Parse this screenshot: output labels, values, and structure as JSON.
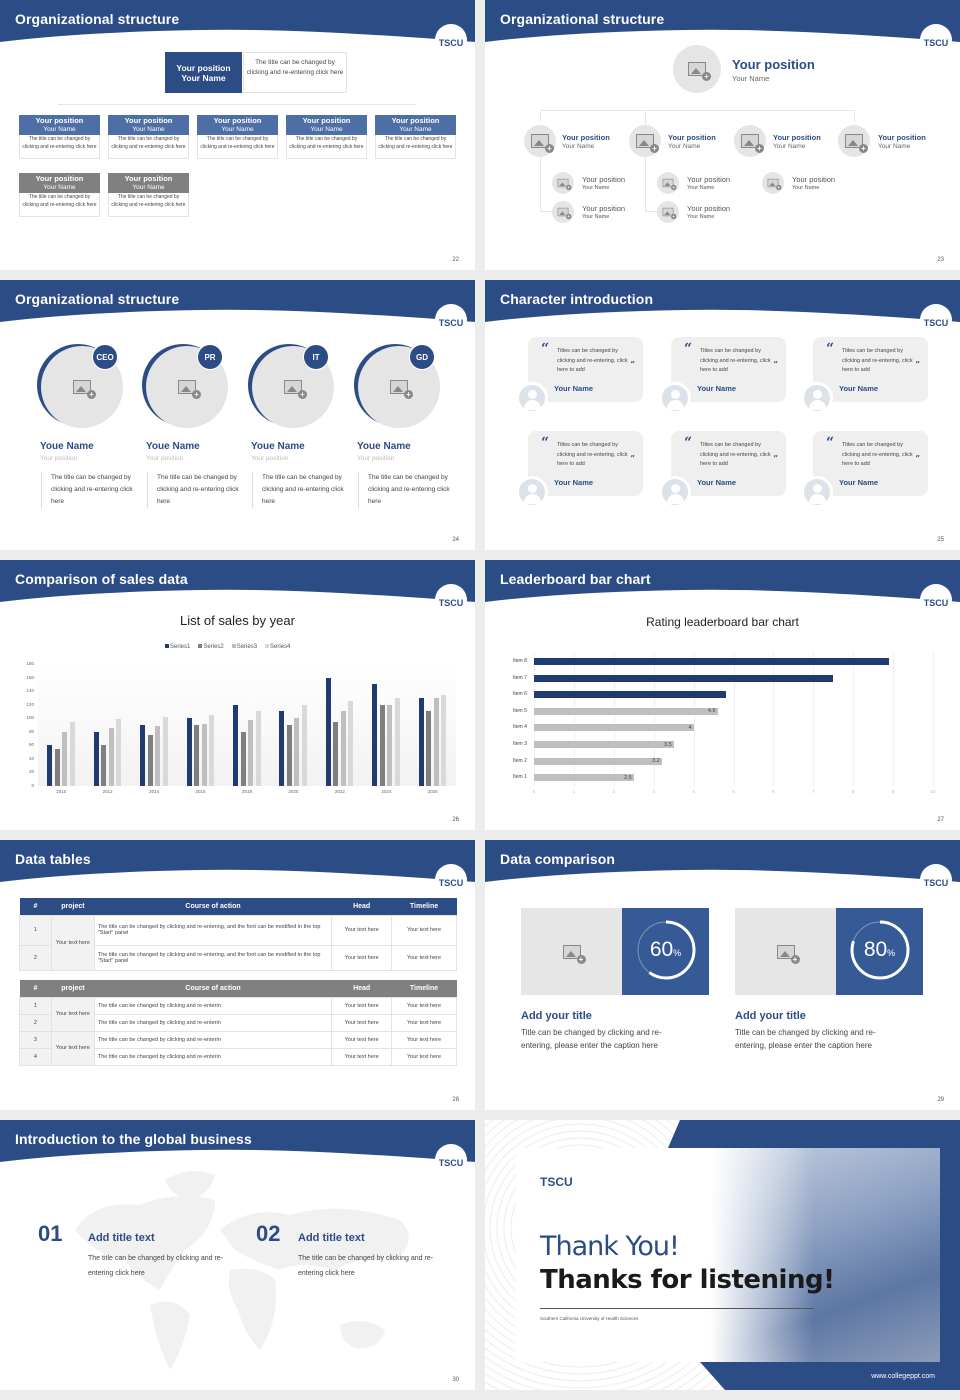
{
  "colors": {
    "brand_navy": "#2c4c85",
    "gray_header": "#808080",
    "light_gray": "#e5e5e5"
  },
  "logo_text": "TSCU",
  "slides": {
    "s22": {
      "title": "Organizational structure",
      "page": "22",
      "top": {
        "position": "Your position",
        "name": "Your Name",
        "desc": "The title can be changed by clicking and re-entering click here"
      },
      "row1": [
        {
          "position": "Your position",
          "name": "Your Name",
          "desc": "The title can be changed by clicking and re-entering click here"
        },
        {
          "position": "Your position",
          "name": "Your Name",
          "desc": "The title can be changed by clicking and re-entering click here"
        },
        {
          "position": "Your position",
          "name": "Your Name",
          "desc": "The title can be changed by clicking and re-entering click here"
        },
        {
          "position": "Your position",
          "name": "Your Name",
          "desc": "The title can be changed by clicking and re-entering click here"
        },
        {
          "position": "Your position",
          "name": "Your Name",
          "desc": "The title can be changed by clicking and re-entering click here"
        }
      ],
      "row2": [
        {
          "position": "Your position",
          "name": "Your Name",
          "desc": "The title can be changed by clicking and re-entering click here"
        },
        {
          "position": "Your position",
          "name": "Your Name",
          "desc": "The title can be changed by clicking and re-entering click here"
        }
      ]
    },
    "s23": {
      "title": "Organizational structure",
      "page": "23",
      "top": {
        "position": "Your position",
        "name": "Your Name"
      },
      "level2": [
        {
          "position": "Your position",
          "name": "Your Name"
        },
        {
          "position": "Your position",
          "name": "Your Name"
        },
        {
          "position": "Your position",
          "name": "Your Name"
        },
        {
          "position": "Your position",
          "name": "Your Name"
        }
      ],
      "level3": [
        {
          "position": "Your position",
          "name": "Your Name"
        },
        {
          "position": "Your position",
          "name": "Your Name"
        },
        {
          "position": "Your position",
          "name": "Your Name"
        },
        {
          "position": "Your position",
          "name": "Your Name"
        },
        {
          "position": "Your position",
          "name": "Your Name"
        }
      ]
    },
    "s24": {
      "title": "Organizational structure",
      "page": "24",
      "people": [
        {
          "badge": "CEO",
          "name": "Youe Name",
          "position": "Your position",
          "desc": "The title can be changed by clicking and re-entering click here"
        },
        {
          "badge": "PR",
          "name": "Youe Name",
          "position": "Your position",
          "desc": "The title can be changed by clicking and re-entering click here"
        },
        {
          "badge": "IT",
          "name": "Youe Name",
          "position": "Your position",
          "desc": "The title can be changed by clicking and re-entering click here"
        },
        {
          "badge": "GD",
          "name": "Youe Name",
          "position": "Your position",
          "desc": "The title can be changed by clicking and re-entering click here"
        }
      ]
    },
    "s25": {
      "title": "Character introduction",
      "page": "25",
      "open_quote": "“",
      "close_quote": "”",
      "cards": [
        {
          "text": "Titles can be changed by clicking and re-entering, click here to add",
          "name": "Your Name"
        },
        {
          "text": "Titles can be changed by clicking and re-entering, click here to add",
          "name": "Your Name"
        },
        {
          "text": "Titles can be changed by clicking and re-entering, click here to add",
          "name": "Your Name"
        },
        {
          "text": "Titles can be changed by clicking and re-entering, click here to add",
          "name": "Your Name"
        },
        {
          "text": "Titles can be changed by clicking and re-entering, click here to add",
          "name": "Your Name"
        },
        {
          "text": "Titles can be changed by clicking and re-entering, click here to add",
          "name": "Your Name"
        }
      ]
    },
    "s26": {
      "title": "Comparison of sales data",
      "page": "26"
    },
    "s27": {
      "title": "Leaderboard bar chart",
      "page": "27"
    },
    "s28": {
      "title": "Data tables",
      "page": "28",
      "headers": [
        "#",
        "project",
        "Course of action",
        "Head",
        "Timeline"
      ],
      "table1": {
        "project": "Your text here",
        "rows": [
          {
            "num": "1",
            "action": "The title can be changed by clicking and re-entering, and the font can be modified in the top \"Start\" panel",
            "head": "Your text here",
            "timeline": "Your text here"
          },
          {
            "num": "2",
            "action": "The title can be changed by clicking and re-entering, and the font can be modified in the top \"Start\" panel",
            "head": "Your text here",
            "timeline": "Your text here"
          }
        ]
      },
      "table2": {
        "project_a": "Your text here",
        "project_b": "Your text here",
        "rows": [
          {
            "num": "1",
            "action": "The title can be changed by clicking and re-enterin",
            "head": "Your text here",
            "timeline": "Your text here"
          },
          {
            "num": "2",
            "action": "The title can be changed by clicking and re-enterin",
            "head": "Your text here",
            "timeline": "Your text here"
          },
          {
            "num": "3",
            "action": "The title can be changed by clicking and re-enterin",
            "head": "Your text here",
            "timeline": "Your text here"
          },
          {
            "num": "4",
            "action": "The title can be changed by clicking and re-enterin",
            "head": "Your text here",
            "timeline": "Your text here"
          }
        ]
      }
    },
    "s29": {
      "title": "Data comparison",
      "page": "29",
      "items": [
        {
          "value": "60",
          "unit": "%",
          "pct": 60,
          "title": "Add your title",
          "desc": "Title can be changed by clicking and re-entering, please enter the caption here"
        },
        {
          "value": "80",
          "unit": "%",
          "pct": 80,
          "title": "Add your title",
          "desc": "Title can be changed by clicking and re-entering, please enter the caption here"
        }
      ]
    },
    "s30": {
      "title": "Introduction to the global business",
      "page": "30",
      "items": [
        {
          "num": "01",
          "title": "Add title text",
          "desc": "The title can be changed by clicking and re-entering click here"
        },
        {
          "num": "02",
          "title": "Add title text",
          "desc": "The title can be changed by clicking and re-entering click here"
        }
      ]
    },
    "s31": {
      "logo": "TSCU",
      "line1": "Thank You!",
      "line2": "Thanks for listening!",
      "subtitle": "Southern California University of Health Sciences",
      "url": "www.collegeppt.com"
    }
  },
  "chart_data": [
    {
      "type": "bar",
      "title": "List of sales by year",
      "categories": [
        "2010",
        "2012",
        "2014",
        "2016",
        "2018",
        "2020",
        "2022",
        "2024",
        "2026"
      ],
      "series": [
        {
          "name": "Series1",
          "color": "#1f3b70",
          "values": [
            60,
            80,
            90,
            100,
            120,
            110,
            160,
            150,
            130
          ]
        },
        {
          "name": "Series2",
          "color": "#7f7f7f",
          "values": [
            55,
            60,
            75,
            90,
            80,
            90,
            95,
            120,
            110
          ]
        },
        {
          "name": "Series3",
          "color": "#bfbfbf",
          "values": [
            80,
            86,
            88,
            92,
            98,
            100,
            110,
            120,
            130
          ]
        },
        {
          "name": "Series4",
          "color": "#d9d9d9",
          "values": [
            95,
            99,
            102,
            105,
            110,
            120,
            126,
            130,
            135
          ]
        }
      ],
      "yticks": [
        0,
        20,
        40,
        60,
        80,
        100,
        120,
        140,
        160,
        180
      ],
      "ylim": [
        0,
        180
      ],
      "xlabel": "",
      "ylabel": "",
      "legend_position": "top",
      "grid": false
    },
    {
      "type": "bar",
      "orientation": "horizontal",
      "title": "Rating leaderboard bar chart",
      "categories": [
        "Item 1",
        "Item 2",
        "Item 3",
        "Item 4",
        "Item 5",
        "Item 6",
        "Item 7",
        "Item 8"
      ],
      "values": [
        2.5,
        3.2,
        3.5,
        4,
        4.6,
        4.8,
        7.5,
        8.9
      ],
      "data_labels": [
        "2.5",
        "3.2",
        "3.5",
        "4",
        "4.6",
        "",
        "",
        ""
      ],
      "highlight_color": "#1f3b70",
      "base_color": "#bfbfbf",
      "xticks": [
        0,
        1,
        2,
        3,
        4,
        5,
        6,
        7,
        8,
        9,
        10
      ],
      "xlim": [
        0,
        10
      ]
    }
  ]
}
